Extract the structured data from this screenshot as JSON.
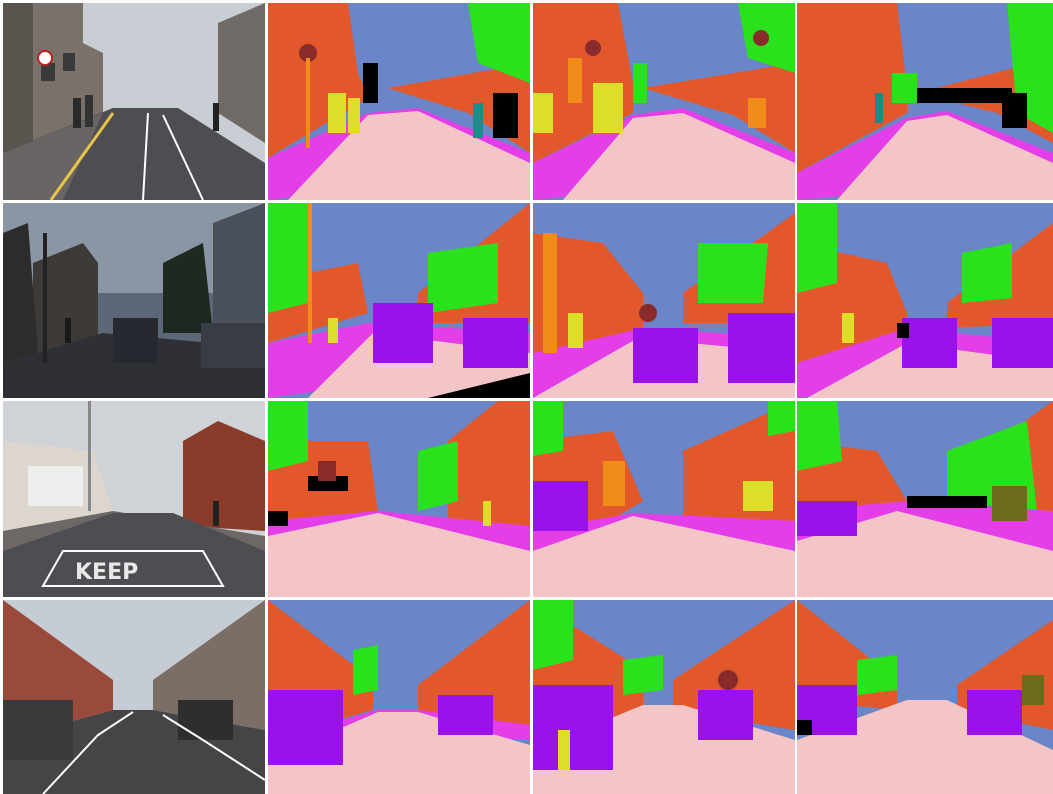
{
  "figure": {
    "rows": 4,
    "columns": 4,
    "road_marking_text": "KEEP"
  },
  "palette": {
    "sky": "#6a85c8",
    "building": "#e3582a",
    "tree": "#29e21b",
    "road": "#f3c5c6",
    "sidewalk": "#e43ee8",
    "car": "#9a12ea",
    "pole": "#f18c1a",
    "pedestrian": "#dddd2a",
    "sign": "#8a2b2b",
    "void": "#000000",
    "cyclist": "#1f8b8b"
  }
}
